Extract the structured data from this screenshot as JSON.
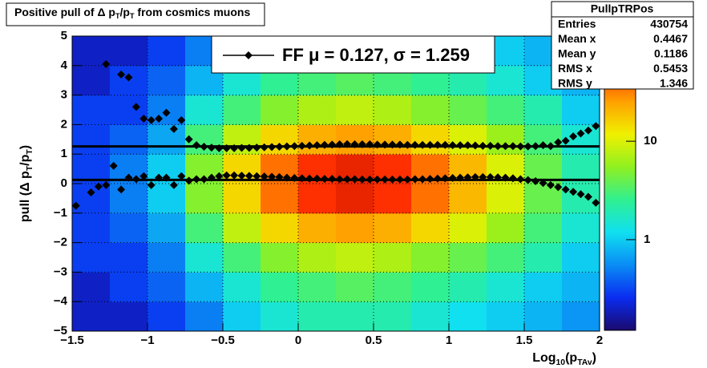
{
  "chart_data": {
    "type": "scatter",
    "title": [
      "Positive pull of Δ p",
      "T",
      "/p",
      "T",
      " from cosmics muons"
    ],
    "xlabel": [
      "Log",
      "10",
      "(p",
      "TAv",
      ")"
    ],
    "ylabel": [
      "pull (Δ p",
      "T",
      "/p",
      "T",
      ")"
    ],
    "xlim": [
      -1.5,
      2
    ],
    "ylim": [
      -5,
      5
    ],
    "xticks": [
      {
        "value": -1.5,
        "label": "−1.5"
      },
      {
        "value": -1,
        "label": "−1"
      },
      {
        "value": -0.5,
        "label": "−0.5"
      },
      0,
      0.5,
      1,
      1.5,
      2
    ],
    "yticks": [
      {
        "value": -5,
        "label": "−5"
      },
      {
        "value": -4,
        "label": "−4"
      },
      {
        "value": -3,
        "label": "−3"
      },
      {
        "value": -2,
        "label": "−2"
      },
      {
        "value": -1,
        "label": "−1"
      },
      0,
      1,
      2,
      3,
      4,
      5
    ],
    "grid": true,
    "heatmap": {
      "xbins": [
        -1.5,
        -1.25,
        -1,
        -0.75,
        -0.5,
        -0.25,
        0,
        0.25,
        0.5,
        0.75,
        1,
        1.25,
        1.5,
        1.75,
        2
      ],
      "ybins": [
        -5,
        -4,
        -3,
        -2,
        -1,
        0,
        1,
        2,
        3,
        4,
        5
      ],
      "z": [
        [
          0.2,
          0.2,
          0.3,
          0.5,
          1,
          1.5,
          2,
          2,
          2,
          1.5,
          1.2,
          1,
          0.8,
          0.6
        ],
        [
          0.2,
          0.3,
          0.4,
          0.8,
          1.5,
          2.5,
          3,
          3.5,
          3,
          2.5,
          2,
          1.5,
          1,
          0.8
        ],
        [
          0.3,
          0.3,
          0.5,
          1.5,
          3,
          5,
          7,
          8,
          7,
          5,
          4,
          3,
          2,
          1
        ],
        [
          0.3,
          0.4,
          0.7,
          3,
          8,
          15,
          22,
          25,
          22,
          15,
          10,
          6,
          3,
          1.5
        ],
        [
          0.3,
          0.5,
          1,
          5,
          15,
          35,
          55,
          65,
          55,
          35,
          20,
          10,
          4,
          2
        ],
        [
          0.3,
          0.5,
          1,
          5,
          15,
          35,
          55,
          65,
          55,
          35,
          20,
          10,
          4,
          2
        ],
        [
          0.3,
          0.4,
          0.7,
          3,
          8,
          15,
          22,
          25,
          22,
          15,
          10,
          6,
          3,
          1.5
        ],
        [
          0.3,
          0.3,
          0.5,
          1.5,
          3,
          5,
          7,
          8,
          7,
          5,
          4,
          3,
          2,
          1
        ],
        [
          0.2,
          0.3,
          0.4,
          0.8,
          1.5,
          2.5,
          3,
          3.5,
          3,
          2.5,
          2,
          1.5,
          1,
          0.8
        ],
        [
          0.2,
          0.2,
          0.3,
          0.5,
          1,
          1.5,
          2,
          2,
          2,
          1.5,
          1.2,
          1,
          0.8,
          0.6
        ]
      ],
      "zlim": [
        0.12,
        117
      ],
      "zticks": [
        1,
        10
      ],
      "log_z": true,
      "palette": [
        "#1a0a6e",
        "#0a2cf0",
        "#0a8cf5",
        "#10e0f0",
        "#30f090",
        "#90f020",
        "#f0f000",
        "#ffa000",
        "#ff3000",
        "#a00000"
      ]
    },
    "x": [
      -1.475,
      -1.425,
      -1.375,
      -1.325,
      -1.275,
      -1.225,
      -1.175,
      -1.125,
      -1.075,
      -1.025,
      -0.975,
      -0.925,
      -0.875,
      -0.825,
      -0.775,
      -0.725,
      -0.675,
      -0.625,
      -0.575,
      -0.525,
      -0.475,
      -0.425,
      -0.375,
      -0.325,
      -0.275,
      -0.225,
      -0.175,
      -0.125,
      -0.075,
      -0.025,
      0.025,
      0.075,
      0.125,
      0.175,
      0.225,
      0.275,
      0.325,
      0.375,
      0.425,
      0.475,
      0.525,
      0.575,
      0.625,
      0.675,
      0.725,
      0.775,
      0.825,
      0.875,
      0.925,
      0.975,
      1.025,
      1.075,
      1.125,
      1.175,
      1.225,
      1.275,
      1.325,
      1.375,
      1.425,
      1.475,
      1.525,
      1.575,
      1.625,
      1.675,
      1.725,
      1.775,
      1.825,
      1.875,
      1.925,
      1.975
    ],
    "series": [
      {
        "color": "#000000",
        "values": [
          -0.75,
          null,
          -0.3,
          -0.1,
          -0.05,
          0.6,
          -0.2,
          0.2,
          0.15,
          0.25,
          -0.05,
          0.2,
          0.2,
          -0.05,
          0.25,
          0.1,
          0.15,
          0.15,
          0.2,
          0.25,
          0.28,
          0.28,
          0.27,
          0.26,
          0.25,
          0.24,
          0.23,
          0.22,
          0.2,
          0.19,
          0.18,
          0.17,
          0.17,
          0.16,
          0.16,
          0.15,
          0.15,
          0.15,
          0.14,
          0.14,
          0.14,
          0.14,
          0.14,
          0.14,
          0.14,
          0.15,
          0.15,
          0.16,
          0.17,
          0.18,
          0.19,
          0.2,
          0.21,
          0.22,
          0.22,
          0.22,
          0.21,
          0.2,
          0.18,
          0.15,
          0.12,
          0.08,
          0.02,
          -0.05,
          -0.12,
          -0.2,
          -0.28,
          -0.36,
          -0.45,
          -0.65
        ]
      },
      {
        "color": "#000000",
        "values": [
          null,
          null,
          null,
          null,
          4.05,
          null,
          3.7,
          3.6,
          2.6,
          2.2,
          2.15,
          2.2,
          2.4,
          1.85,
          2.15,
          1.5,
          1.3,
          1.25,
          1.22,
          1.2,
          1.2,
          1.2,
          1.21,
          1.21,
          1.22,
          1.23,
          1.24,
          1.25,
          1.26,
          1.27,
          1.28,
          1.29,
          1.3,
          1.31,
          1.32,
          1.33,
          1.34,
          1.33,
          1.33,
          1.33,
          1.32,
          1.32,
          1.32,
          1.32,
          1.31,
          1.31,
          1.31,
          1.31,
          1.31,
          1.31,
          1.3,
          1.3,
          1.3,
          1.29,
          1.28,
          1.28,
          1.27,
          1.27,
          1.27,
          1.26,
          1.26,
          1.27,
          1.3,
          1.27,
          1.4,
          1.45,
          1.6,
          1.7,
          1.8,
          1.95
        ]
      }
    ],
    "fit": {
      "label": "FF μ =  0.127, σ =   1.259",
      "mu": 0.127,
      "sigma": 1.259,
      "color": "#000000"
    },
    "stats": {
      "title": "PullpTRPos",
      "rows": [
        {
          "label": "Entries",
          "value": 430754
        },
        {
          "label": "Mean x",
          "value": 0.4467
        },
        {
          "label": "Mean y",
          "value": 0.1186
        },
        {
          "label": "RMS x",
          "value": 0.5453
        },
        {
          "label": "RMS y",
          "value": 1.346
        }
      ]
    }
  }
}
